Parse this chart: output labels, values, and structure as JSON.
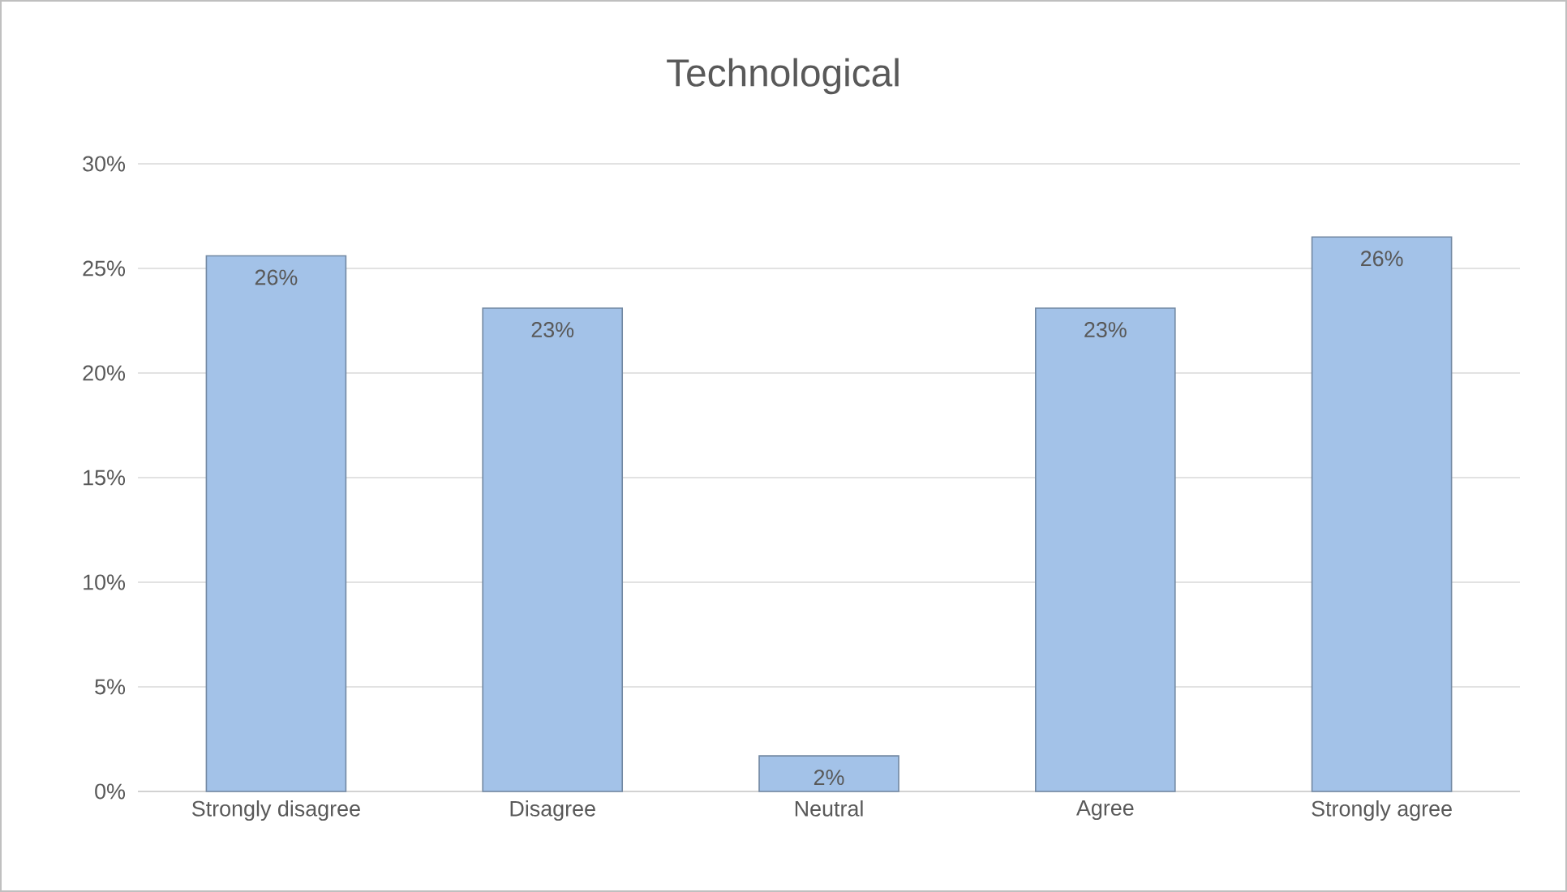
{
  "chart_data": {
    "type": "bar",
    "title": "Technological",
    "categories": [
      "Strongly disagree",
      "Disagree",
      "Neutral",
      "Agree",
      "Strongly agree"
    ],
    "values": [
      25.6,
      23.1,
      1.7,
      23.1,
      26.5
    ],
    "value_labels": [
      "26%",
      "23%",
      "2%",
      "23%",
      "26%"
    ],
    "color": "#a3c2e8",
    "ylim": [
      0,
      30
    ],
    "yticks": [
      {
        "value": 0,
        "label": "0%"
      },
      {
        "value": 5,
        "label": "5%"
      },
      {
        "value": 10,
        "label": "10%"
      },
      {
        "value": 15,
        "label": "15%"
      },
      {
        "value": 20,
        "label": "20%"
      },
      {
        "value": 25,
        "label": "25%"
      },
      {
        "value": 30,
        "label": "30%"
      }
    ],
    "grid": "y"
  }
}
